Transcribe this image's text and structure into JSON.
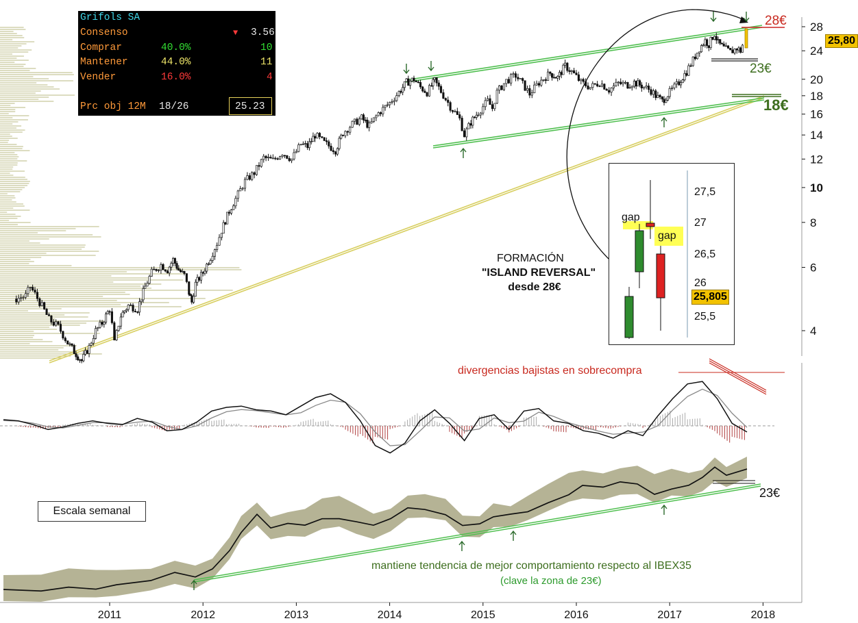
{
  "stats": {
    "company": "Grifols SA",
    "consensus_label": "Consenso",
    "consensus_arrow": "▼",
    "consensus_value": "3.56",
    "buy_label": "Comprar",
    "buy_pct": "40.0%",
    "buy_count": "10",
    "hold_label": "Mantener",
    "hold_pct": "44.0%",
    "hold_count": "11",
    "sell_label": "Vender",
    "sell_pct": "16.0%",
    "sell_count": "4",
    "target_label": "Prc obj 12M",
    "target_range": "18/26",
    "target_value": "25.23"
  },
  "annotations": {
    "level_28": "28€",
    "level_23_top": "23€",
    "level_18": "18€",
    "price_tag": "25,80",
    "formation_line1": "FORMACIÓN",
    "formation_line2": "\"ISLAND REVERSAL\"",
    "formation_line3": "desde 28€",
    "divergence": "divergencias bajistas en sobrecompra",
    "level_23_bottom": "23€",
    "scale": "Escala semanal",
    "relative_line1": "mantiene tendencia de mejor comportamiento respecto al IBEX35",
    "relative_line2": "(clave la zona de 23€)"
  },
  "inset": {
    "gap1": "gap",
    "gap2": "gap",
    "price_tag": "25,805",
    "axis_ticks": [
      "27,5",
      "27",
      "26,5",
      "26",
      "25,5"
    ]
  },
  "colors": {
    "trend_green": "#4fbf4f",
    "trend_yellow": "#d8cf62",
    "resistance_red": "#cc2222",
    "volume_profile": "#c8c89a",
    "relative_fill": "#a3a07a",
    "price_tag": "#f2c200",
    "text_red": "#c8281e",
    "text_green": "#3d6e1e",
    "text_green_light": "#2c9a2c"
  },
  "chart_data": [
    {
      "type": "candlestick",
      "title": "Grifols SA",
      "scale": "log",
      "ylim": [
        3.2,
        30
      ],
      "y_ticks": [
        4,
        6,
        8,
        10,
        12,
        14,
        16,
        18,
        20,
        24,
        28
      ],
      "x_ticks": [
        "2011",
        "2012",
        "2013",
        "2014",
        "2015",
        "2016",
        "2017",
        "2018"
      ],
      "xlim": [
        2010.0,
        2018.3
      ],
      "close_series": [
        [
          2010.0,
          4.9
        ],
        [
          2010.1,
          5.0
        ],
        [
          2010.15,
          5.3
        ],
        [
          2010.25,
          4.8
        ],
        [
          2010.35,
          4.3
        ],
        [
          2010.45,
          4.1
        ],
        [
          2010.55,
          3.7
        ],
        [
          2010.62,
          3.5
        ],
        [
          2010.7,
          3.3
        ],
        [
          2010.78,
          3.6
        ],
        [
          2010.85,
          4.0
        ],
        [
          2010.92,
          4.2
        ],
        [
          2011.0,
          4.6
        ],
        [
          2011.05,
          3.7
        ],
        [
          2011.12,
          4.4
        ],
        [
          2011.2,
          4.7
        ],
        [
          2011.3,
          4.6
        ],
        [
          2011.38,
          5.3
        ],
        [
          2011.45,
          5.8
        ],
        [
          2011.55,
          6.1
        ],
        [
          2011.62,
          5.9
        ],
        [
          2011.68,
          6.3
        ],
        [
          2011.74,
          5.9
        ],
        [
          2011.8,
          5.7
        ],
        [
          2011.85,
          5.1
        ],
        [
          2011.88,
          4.8
        ],
        [
          2011.92,
          5.4
        ],
        [
          2012.0,
          5.8
        ],
        [
          2012.08,
          6.4
        ],
        [
          2012.15,
          7.0
        ],
        [
          2012.2,
          7.6
        ],
        [
          2012.28,
          8.6
        ],
        [
          2012.35,
          9.3
        ],
        [
          2012.45,
          10.4
        ],
        [
          2012.55,
          11.0
        ],
        [
          2012.65,
          12.1
        ],
        [
          2012.75,
          11.9
        ],
        [
          2012.85,
          12.5
        ],
        [
          2012.95,
          12.0
        ],
        [
          2013.05,
          13.2
        ],
        [
          2013.12,
          13.0
        ],
        [
          2013.2,
          14.0
        ],
        [
          2013.3,
          13.3
        ],
        [
          2013.42,
          12.7
        ],
        [
          2013.5,
          14.2
        ],
        [
          2013.6,
          15.0
        ],
        [
          2013.7,
          15.6
        ],
        [
          2013.78,
          14.8
        ],
        [
          2013.88,
          16.1
        ],
        [
          2014.0,
          17.2
        ],
        [
          2014.1,
          18.4
        ],
        [
          2014.18,
          19.6
        ],
        [
          2014.26,
          20.0
        ],
        [
          2014.33,
          19.0
        ],
        [
          2014.4,
          18.4
        ],
        [
          2014.45,
          19.2
        ],
        [
          2014.48,
          19.8
        ],
        [
          2014.55,
          18.5
        ],
        [
          2014.65,
          16.8
        ],
        [
          2014.75,
          15.5
        ],
        [
          2014.8,
          14.0
        ],
        [
          2014.87,
          15.2
        ],
        [
          2014.95,
          16.2
        ],
        [
          2015.05,
          17.4
        ],
        [
          2015.1,
          16.6
        ],
        [
          2015.15,
          18.4
        ],
        [
          2015.25,
          19.8
        ],
        [
          2015.35,
          20.5
        ],
        [
          2015.45,
          19.0
        ],
        [
          2015.5,
          18.2
        ],
        [
          2015.6,
          19.6
        ],
        [
          2015.72,
          20.8
        ],
        [
          2015.8,
          20.2
        ],
        [
          2015.88,
          21.8
        ],
        [
          2015.95,
          21.0
        ],
        [
          2016.05,
          19.6
        ],
        [
          2016.15,
          19.0
        ],
        [
          2016.25,
          19.6
        ],
        [
          2016.35,
          18.7
        ],
        [
          2016.45,
          19.5
        ],
        [
          2016.55,
          19.3
        ],
        [
          2016.62,
          19.6
        ],
        [
          2016.7,
          19.2
        ],
        [
          2016.8,
          18.6
        ],
        [
          2016.85,
          18.0
        ],
        [
          2016.92,
          17.4
        ],
        [
          2017.0,
          18.4
        ],
        [
          2017.1,
          19.6
        ],
        [
          2017.18,
          21.0
        ],
        [
          2017.25,
          22.6
        ],
        [
          2017.32,
          24.4
        ],
        [
          2017.38,
          25.6
        ],
        [
          2017.42,
          25.0
        ],
        [
          2017.48,
          26.8
        ],
        [
          2017.52,
          25.2
        ],
        [
          2017.58,
          24.4
        ],
        [
          2017.65,
          23.8
        ],
        [
          2017.72,
          24.4
        ],
        [
          2017.76,
          24.0
        ],
        [
          2017.8,
          25.8
        ]
      ]
    },
    {
      "type": "line",
      "title": "divergencias bajistas en sobrecompra",
      "series": [
        {
          "values": [
            0.5,
            0.4,
            0.1,
            -0.3,
            -0.1,
            0.2,
            0.4,
            0.2,
            0.1,
            0.6,
            0.3,
            -0.4,
            -0.3,
            0.3,
            1.2,
            1.5,
            1.6,
            1.3,
            1.2,
            0.9,
            1.6,
            2.3,
            2.6,
            1.9,
            0.4,
            -1.6,
            -2.2,
            -1.4,
            0.4,
            1.3,
            0.2,
            -1.2,
            0.6,
            0.9,
            -0.3,
            1.2,
            1.4,
            0.4,
            0.2,
            -0.4,
            -0.6,
            -1.0,
            -0.4,
            -0.8,
            0.8,
            2.2,
            3.4,
            3.6,
            2.2,
            0.2,
            -0.5
          ]
        }
      ]
    },
    {
      "type": "area",
      "title": "mantiene tendencia de mejor comportamiento respecto al IBEX35",
      "x_ticks": [
        "2011",
        "2012",
        "2013",
        "2014",
        "2015",
        "2016",
        "2017",
        "2018"
      ]
    }
  ]
}
